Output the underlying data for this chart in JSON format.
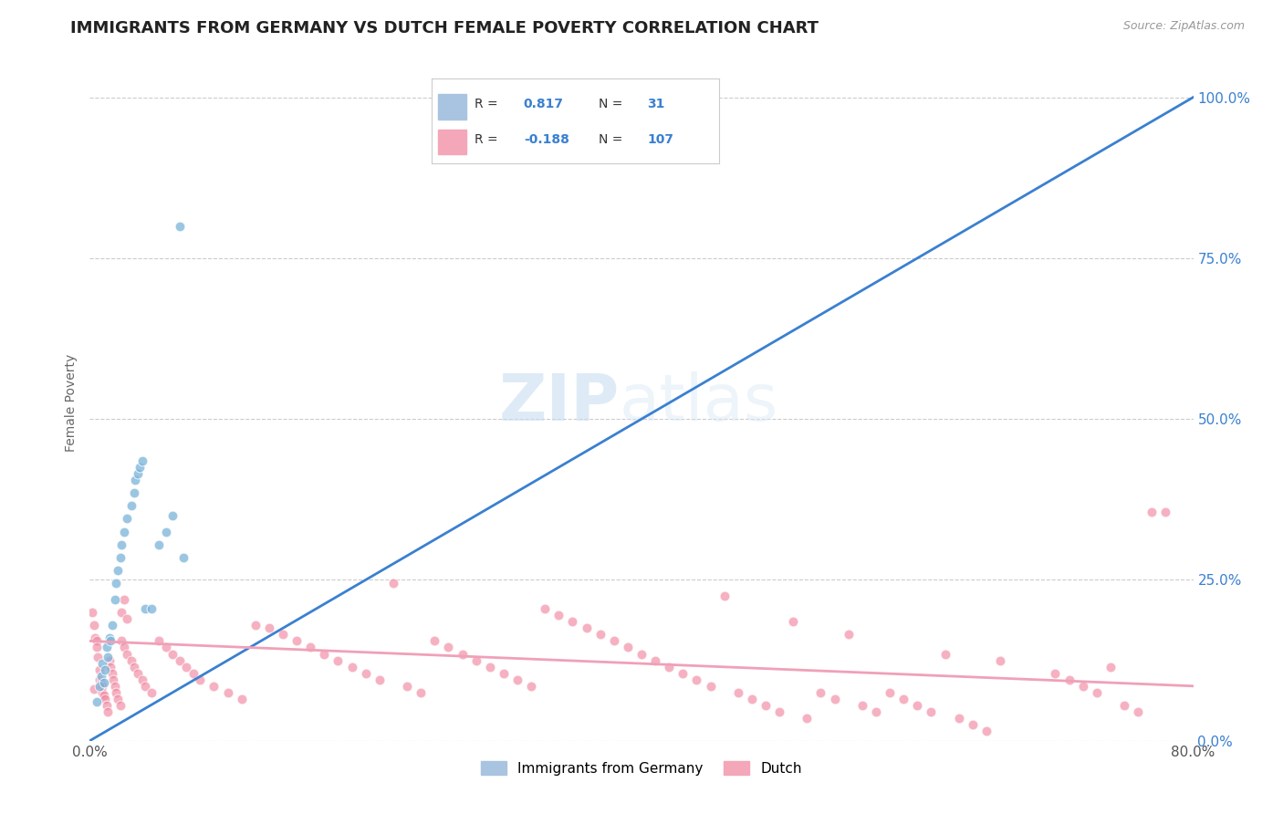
{
  "title": "IMMIGRANTS FROM GERMANY VS DUTCH FEMALE POVERTY CORRELATION CHART",
  "source": "Source: ZipAtlas.com",
  "ylabel": "Female Poverty",
  "yticks": [
    "0.0%",
    "25.0%",
    "50.0%",
    "75.0%",
    "100.0%"
  ],
  "ytick_vals": [
    0.0,
    0.25,
    0.5,
    0.75,
    1.0
  ],
  "xlim": [
    0.0,
    0.8
  ],
  "ylim": [
    0.0,
    1.05
  ],
  "legend_entries": [
    {
      "label": "Immigrants from Germany",
      "color": "#a8c4e0",
      "R": "0.817",
      "N": "31"
    },
    {
      "label": "Dutch",
      "color": "#f4a7b9",
      "R": "-0.188",
      "N": "107"
    }
  ],
  "watermark_zip": "ZIP",
  "watermark_atlas": "atlas",
  "blue_line": {
    "x": [
      0.0,
      0.8
    ],
    "y": [
      0.0,
      1.0
    ]
  },
  "pink_line": {
    "x": [
      0.0,
      0.8
    ],
    "y": [
      0.155,
      0.085
    ]
  },
  "blue_scatter": [
    [
      0.005,
      0.06
    ],
    [
      0.007,
      0.085
    ],
    [
      0.008,
      0.1
    ],
    [
      0.009,
      0.12
    ],
    [
      0.01,
      0.09
    ],
    [
      0.011,
      0.11
    ],
    [
      0.012,
      0.145
    ],
    [
      0.013,
      0.13
    ],
    [
      0.014,
      0.16
    ],
    [
      0.015,
      0.155
    ],
    [
      0.016,
      0.18
    ],
    [
      0.018,
      0.22
    ],
    [
      0.019,
      0.245
    ],
    [
      0.02,
      0.265
    ],
    [
      0.022,
      0.285
    ],
    [
      0.023,
      0.305
    ],
    [
      0.025,
      0.325
    ],
    [
      0.027,
      0.345
    ],
    [
      0.03,
      0.365
    ],
    [
      0.032,
      0.385
    ],
    [
      0.033,
      0.405
    ],
    [
      0.035,
      0.415
    ],
    [
      0.036,
      0.425
    ],
    [
      0.038,
      0.435
    ],
    [
      0.04,
      0.205
    ],
    [
      0.045,
      0.205
    ],
    [
      0.05,
      0.305
    ],
    [
      0.055,
      0.325
    ],
    [
      0.06,
      0.35
    ],
    [
      0.068,
      0.285
    ],
    [
      0.065,
      0.8
    ]
  ],
  "pink_scatter": [
    [
      0.002,
      0.2
    ],
    [
      0.003,
      0.18
    ],
    [
      0.003,
      0.08
    ],
    [
      0.004,
      0.16
    ],
    [
      0.005,
      0.155
    ],
    [
      0.005,
      0.145
    ],
    [
      0.006,
      0.13
    ],
    [
      0.007,
      0.11
    ],
    [
      0.007,
      0.095
    ],
    [
      0.008,
      0.09
    ],
    [
      0.009,
      0.085
    ],
    [
      0.009,
      0.075
    ],
    [
      0.01,
      0.07
    ],
    [
      0.011,
      0.065
    ],
    [
      0.012,
      0.055
    ],
    [
      0.013,
      0.045
    ],
    [
      0.014,
      0.125
    ],
    [
      0.015,
      0.115
    ],
    [
      0.016,
      0.105
    ],
    [
      0.017,
      0.095
    ],
    [
      0.018,
      0.085
    ],
    [
      0.019,
      0.075
    ],
    [
      0.02,
      0.065
    ],
    [
      0.022,
      0.055
    ],
    [
      0.023,
      0.155
    ],
    [
      0.023,
      0.2
    ],
    [
      0.025,
      0.145
    ],
    [
      0.025,
      0.22
    ],
    [
      0.027,
      0.135
    ],
    [
      0.027,
      0.19
    ],
    [
      0.03,
      0.125
    ],
    [
      0.032,
      0.115
    ],
    [
      0.035,
      0.105
    ],
    [
      0.038,
      0.095
    ],
    [
      0.04,
      0.085
    ],
    [
      0.045,
      0.075
    ],
    [
      0.05,
      0.155
    ],
    [
      0.055,
      0.145
    ],
    [
      0.06,
      0.135
    ],
    [
      0.065,
      0.125
    ],
    [
      0.07,
      0.115
    ],
    [
      0.075,
      0.105
    ],
    [
      0.08,
      0.095
    ],
    [
      0.09,
      0.085
    ],
    [
      0.1,
      0.075
    ],
    [
      0.11,
      0.065
    ],
    [
      0.12,
      0.18
    ],
    [
      0.13,
      0.175
    ],
    [
      0.14,
      0.165
    ],
    [
      0.15,
      0.155
    ],
    [
      0.16,
      0.145
    ],
    [
      0.17,
      0.135
    ],
    [
      0.18,
      0.125
    ],
    [
      0.19,
      0.115
    ],
    [
      0.2,
      0.105
    ],
    [
      0.21,
      0.095
    ],
    [
      0.22,
      0.245
    ],
    [
      0.23,
      0.085
    ],
    [
      0.24,
      0.075
    ],
    [
      0.25,
      0.155
    ],
    [
      0.26,
      0.145
    ],
    [
      0.27,
      0.135
    ],
    [
      0.28,
      0.125
    ],
    [
      0.29,
      0.115
    ],
    [
      0.3,
      0.105
    ],
    [
      0.31,
      0.095
    ],
    [
      0.32,
      0.085
    ],
    [
      0.33,
      0.205
    ],
    [
      0.34,
      0.195
    ],
    [
      0.35,
      0.185
    ],
    [
      0.36,
      0.175
    ],
    [
      0.37,
      0.165
    ],
    [
      0.38,
      0.155
    ],
    [
      0.39,
      0.145
    ],
    [
      0.4,
      0.135
    ],
    [
      0.41,
      0.125
    ],
    [
      0.42,
      0.115
    ],
    [
      0.43,
      0.105
    ],
    [
      0.44,
      0.095
    ],
    [
      0.45,
      0.085
    ],
    [
      0.46,
      0.225
    ],
    [
      0.47,
      0.075
    ],
    [
      0.48,
      0.065
    ],
    [
      0.49,
      0.055
    ],
    [
      0.5,
      0.045
    ],
    [
      0.51,
      0.185
    ],
    [
      0.52,
      0.035
    ],
    [
      0.53,
      0.075
    ],
    [
      0.54,
      0.065
    ],
    [
      0.55,
      0.165
    ],
    [
      0.56,
      0.055
    ],
    [
      0.57,
      0.045
    ],
    [
      0.58,
      0.075
    ],
    [
      0.59,
      0.065
    ],
    [
      0.6,
      0.055
    ],
    [
      0.61,
      0.045
    ],
    [
      0.62,
      0.135
    ],
    [
      0.63,
      0.035
    ],
    [
      0.64,
      0.025
    ],
    [
      0.65,
      0.015
    ],
    [
      0.66,
      0.125
    ],
    [
      0.7,
      0.105
    ],
    [
      0.71,
      0.095
    ],
    [
      0.72,
      0.085
    ],
    [
      0.73,
      0.075
    ],
    [
      0.74,
      0.115
    ],
    [
      0.75,
      0.055
    ],
    [
      0.76,
      0.045
    ],
    [
      0.77,
      0.355
    ],
    [
      0.78,
      0.355
    ]
  ],
  "scatter_size": 60,
  "blue_color": "#7ab3d9",
  "pink_color": "#f088a0",
  "blue_scatter_alpha": 0.75,
  "pink_scatter_alpha": 0.65,
  "blue_line_color": "#3a80d0",
  "pink_line_color": "#f0a0b8",
  "background_color": "#ffffff",
  "grid_color": "#cccccc",
  "title_fontsize": 13,
  "axis_label_fontsize": 10,
  "tick_fontsize": 11
}
